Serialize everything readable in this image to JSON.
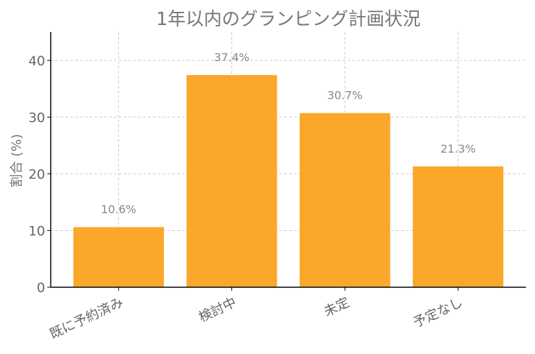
{
  "chart_data": {
    "type": "bar",
    "title": "1年以内のグランピング計画状況",
    "xlabel": "",
    "ylabel": "割合 (%)",
    "categories": [
      "既に予約済み",
      "検討中",
      "未定",
      "予定なし"
    ],
    "values": [
      10.6,
      37.4,
      30.7,
      21.3
    ],
    "data_labels": [
      "10.6%",
      "37.4%",
      "30.7%",
      "21.3%"
    ],
    "ylim": [
      0,
      45
    ],
    "yticks": [
      0,
      10,
      20,
      30,
      40
    ],
    "grid": true,
    "bar_color": "#FAA72A",
    "grid_color": "#CCCCCC",
    "axis_color": "#000000"
  }
}
